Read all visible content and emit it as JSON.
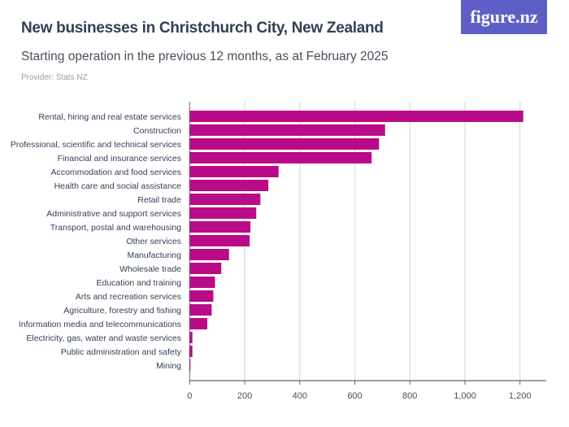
{
  "header": {
    "title": "New businesses in Christchurch City, New Zealand",
    "subtitle": "Starting operation in the previous 12 months, as at February 2025",
    "provider": "Provider: Stats NZ",
    "logo": "figure.nz"
  },
  "chart_data": {
    "type": "bar",
    "orientation": "horizontal",
    "title": "New businesses in Christchurch City, New Zealand",
    "subtitle": "Starting operation in the previous 12 months, as at February 2025",
    "categories": [
      "Rental, hiring and real estate services",
      "Construction",
      "Professional, scientific and technical services",
      "Financial and insurance services",
      "Accommodation and food services",
      "Health care and social assistance",
      "Retail trade",
      "Administrative and support services",
      "Transport, postal and warehousing",
      "Other services",
      "Manufacturing",
      "Wholesale trade",
      "Education and training",
      "Arts and recreation services",
      "Agriculture, forestry and fishing",
      "Information media and telecommunications",
      "Electricity, gas, water and waste services",
      "Public administration and safety",
      "Mining"
    ],
    "values": [
      1212,
      710,
      688,
      661,
      323,
      286,
      257,
      242,
      221,
      218,
      143,
      115,
      92,
      86,
      80,
      64,
      10,
      10,
      1
    ],
    "xlim": [
      0,
      1260
    ],
    "xticks": [
      0,
      200,
      400,
      600,
      800,
      1000,
      1200
    ],
    "xtick_labels": [
      "0",
      "200",
      "400",
      "600",
      "800",
      "1,000",
      "1,200"
    ],
    "grid": true,
    "bar_color": "#b90b87",
    "grid_color": "#dddddd"
  }
}
